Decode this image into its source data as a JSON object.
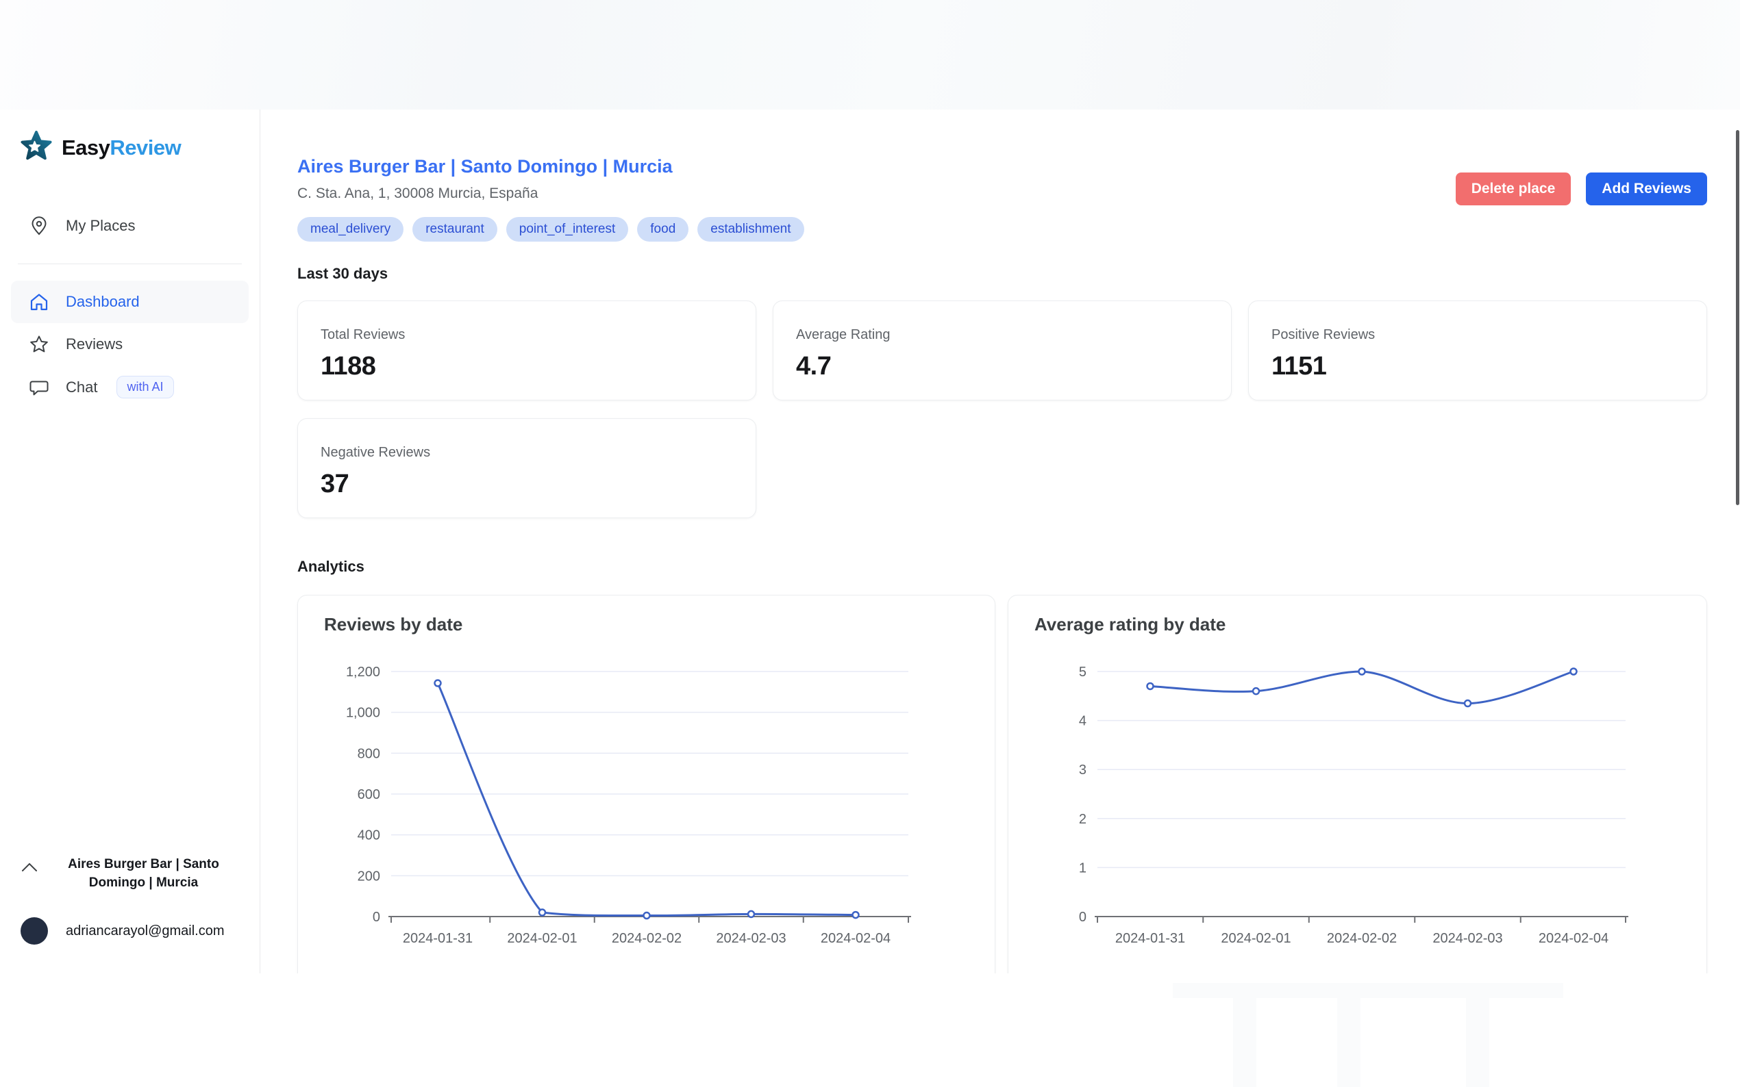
{
  "brand": {
    "easy": "Easy",
    "review": "Review"
  },
  "sidebar": {
    "items": [
      {
        "label": "My Places"
      },
      {
        "label": "Dashboard"
      },
      {
        "label": "Reviews"
      },
      {
        "label": "Chat",
        "badge": "with AI"
      }
    ],
    "account": {
      "place": "Aires Burger Bar | Santo Domingo | Murcia",
      "email": "adriancarayol@gmail.com"
    }
  },
  "header": {
    "title": "Aires Burger Bar | Santo Domingo | Murcia",
    "address": "C. Sta. Ana, 1, 30008 Murcia, España",
    "tags": [
      "meal_delivery",
      "restaurant",
      "point_of_interest",
      "food",
      "establishment"
    ],
    "delete_button": "Delete place",
    "add_button": "Add Reviews"
  },
  "sections": {
    "last30": "Last 30 days",
    "analytics": "Analytics"
  },
  "stats": [
    {
      "label": "Total Reviews",
      "value": "1188"
    },
    {
      "label": "Average Rating",
      "value": "4.7"
    },
    {
      "label": "Positive Reviews",
      "value": "1151"
    },
    {
      "label": "Negative Reviews",
      "value": "37"
    }
  ],
  "colors": {
    "accent_blue": "#2563eb",
    "danger_red": "#f26e6e",
    "title_link_blue": "#3a70f3",
    "tag_bg": "#cfdef9",
    "tag_text": "#2c4fd3",
    "logo_review_blue": "#2e97e4"
  },
  "chart_data": [
    {
      "type": "line",
      "title": "Reviews by date",
      "x": [
        "2024-01-31",
        "2024-02-01",
        "2024-02-02",
        "2024-02-03",
        "2024-02-04"
      ],
      "values": [
        1143,
        20,
        5,
        12,
        8
      ],
      "xlabel": "",
      "ylabel": "",
      "ylim": [
        0,
        1200
      ],
      "yticks": [
        0,
        200,
        400,
        600,
        800,
        1000,
        1200
      ],
      "ytick_labels": [
        "0",
        "200",
        "400",
        "600",
        "800",
        "1,000",
        "1,200"
      ],
      "grid": true,
      "legend": "none",
      "smooth": true,
      "line_color": "#3d63c4",
      "grid_color": "#e7eaf5",
      "axis_color": "#6f7175",
      "tick_color": "#5f6368"
    },
    {
      "type": "line",
      "title": "Average rating by date",
      "x": [
        "2024-01-31",
        "2024-02-01",
        "2024-02-02",
        "2024-02-03",
        "2024-02-04"
      ],
      "values": [
        4.7,
        4.6,
        5,
        4.35,
        5
      ],
      "xlabel": "",
      "ylabel": "",
      "ylim": [
        0,
        5
      ],
      "yticks": [
        0,
        1,
        2,
        3,
        4,
        5
      ],
      "ytick_labels": [
        "0",
        "1",
        "2",
        "3",
        "4",
        "5"
      ],
      "grid": true,
      "legend": "none",
      "smooth": true,
      "line_color": "#3d63c4",
      "grid_color": "#e7eaf5",
      "axis_color": "#6f7175",
      "tick_color": "#5f6368"
    }
  ]
}
